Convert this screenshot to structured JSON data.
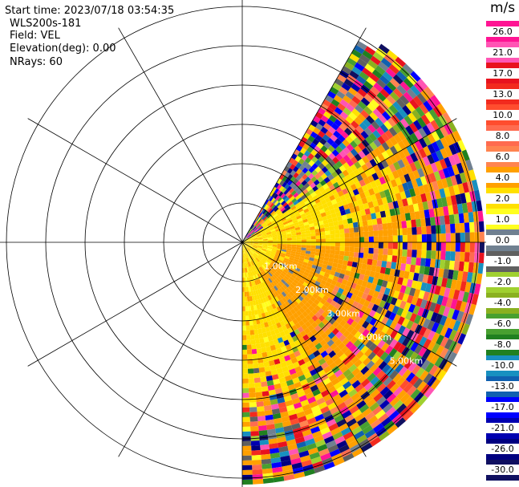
{
  "header": {
    "start_time": "Start time: 2023/07/18 03:54:35",
    "instrument": "WLS200s-181",
    "field": "Field: VEL",
    "elevation": "Elevation(deg): 0.00",
    "nrays": "NRays: 60"
  },
  "colorbar": {
    "title": "m/s",
    "ticks": [
      "26.0",
      "21.0",
      "17.0",
      "13.0",
      "10.0",
      "8.0",
      "6.0",
      "4.0",
      "2.0",
      "1.0",
      "0.0",
      "-1.0",
      "-2.0",
      "-4.0",
      "-6.0",
      "-8.0",
      "-10.0",
      "-13.0",
      "-17.0",
      "-21.0",
      "-26.0",
      "-30.0"
    ],
    "colors": [
      "#ff1493",
      "#ff55b4",
      "#e8121e",
      "#f22a1e",
      "#ff4d2e",
      "#ff6b4f",
      "#ff8450",
      "#ffa000",
      "#ffe000",
      "#ffff20",
      "#708090",
      "#606060",
      "#a0d030",
      "#8ab020",
      "#48a030",
      "#208020",
      "#1890c0",
      "#1060b0",
      "#0000ff",
      "#0000b0",
      "#000080",
      "#101060"
    ]
  },
  "chart_data": {
    "type": "ppi",
    "field": "VEL",
    "units": "m/s",
    "range_rings_km": [
      1,
      2,
      3,
      4,
      5,
      6
    ],
    "range_labels": [
      "1.00km",
      "2.00km",
      "3.00km",
      "4.00km",
      "5.00km"
    ],
    "data_sector_deg": [
      30,
      180
    ],
    "max_range_km": 6.1,
    "colorscale_ticks": [
      26,
      21,
      17,
      13,
      10,
      8,
      6,
      4,
      2,
      1,
      0,
      -1,
      -2,
      -4,
      -6,
      -8,
      -10,
      -13,
      -17,
      -21,
      -26,
      -30
    ]
  }
}
